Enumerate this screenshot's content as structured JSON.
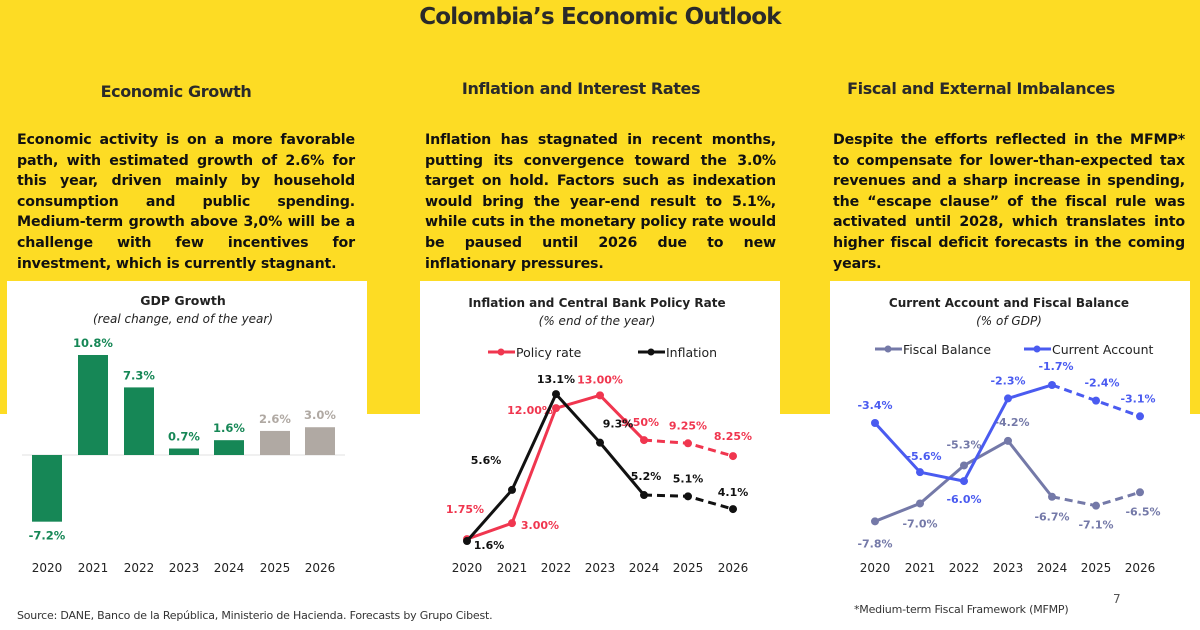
{
  "page": {
    "title": "Colombia’s Economic Outlook",
    "page_number": "7",
    "source": "Source: DANE, Banco de la República, Ministerio de Hacienda. Forecasts by Grupo Cibest.",
    "footnote": "*Medium-term Fiscal Framework (MFMP)",
    "colors": {
      "background_yellow": "#FDDC24",
      "gdp_actual": "#168756",
      "gdp_forecast": "#B0A9A3",
      "policy_rate": "#F0364F",
      "inflation": "#111111",
      "fiscal_balance": "#7479A8",
      "current_account": "#4A5BF0"
    }
  },
  "columns": [
    {
      "heading": "Economic Growth",
      "text": "Economic activity is on a more favorable path, with estimated growth of 2.6% for this year, driven mainly by household consumption and public spending. Medium-term growth above 3,0% will be a challenge with few incentives for investment, which is currently stagnant."
    },
    {
      "heading": "Inflation and Interest Rates",
      "text": "Inflation has stagnated in recent months, putting its convergence toward the 3.0% target on hold. Factors such as indexation would bring the year-end result to 5.1%, while cuts in the monetary policy rate would be paused until 2026 due to new inflationary pressures."
    },
    {
      "heading": "Fiscal and External Imbalances",
      "text": "Despite the efforts reflected in the MFMP* to compensate for lower-than-expected tax revenues and a sharp increase in spending, the “escape clause” of the fiscal rule was activated until 2028, which translates into higher fiscal deficit forecasts in the coming years."
    }
  ],
  "chart_data": [
    {
      "type": "bar",
      "title": "GDP Growth",
      "subtitle": "(real change, end of the year)",
      "categories": [
        "2020",
        "2021",
        "2022",
        "2023",
        "2024",
        "2025",
        "2026"
      ],
      "values": [
        -7.2,
        10.8,
        7.3,
        0.7,
        1.6,
        2.6,
        3.0
      ],
      "labels": [
        "-7.2%",
        "10.8%",
        "7.3%",
        "0.7%",
        "1.6%",
        "2.6%",
        "3.0%"
      ],
      "forecast": [
        false,
        false,
        false,
        false,
        false,
        true,
        true
      ],
      "xlabel": "",
      "ylabel": "",
      "grid": false
    },
    {
      "type": "line",
      "title": "Inflation and Central Bank Policy Rate",
      "subtitle": "(% end of the year)",
      "categories": [
        "2020",
        "2021",
        "2022",
        "2023",
        "2024",
        "2025",
        "2026"
      ],
      "legend_position": "top",
      "series": [
        {
          "name": "Policy rate",
          "values": [
            1.75,
            3.0,
            12.0,
            13.0,
            9.5,
            9.25,
            8.25
          ],
          "labels": [
            "1.75%",
            "3.00%",
            "12.00%",
            "13.00%",
            "9.50%",
            "9.25%",
            "8.25%"
          ],
          "forecast_from_index": 4
        },
        {
          "name": "Inflation",
          "values": [
            1.6,
            5.6,
            13.1,
            9.3,
            5.2,
            5.1,
            4.1
          ],
          "labels": [
            "1.6%",
            "5.6%",
            "13.1%",
            "9.3%",
            "5.2%",
            "5.1%",
            "4.1%"
          ],
          "forecast_from_index": 4
        }
      ],
      "xlabel": "",
      "ylabel": "",
      "grid": false
    },
    {
      "type": "line",
      "title": "Current Account and Fiscal Balance",
      "subtitle": "(% of GDP)",
      "categories": [
        "2020",
        "2021",
        "2022",
        "2023",
        "2024",
        "2025",
        "2026"
      ],
      "legend_position": "top",
      "series": [
        {
          "name": "Fiscal Balance",
          "values": [
            -7.8,
            -7.0,
            -5.3,
            -4.2,
            -6.7,
            -7.1,
            -6.5
          ],
          "labels": [
            "-7.8%",
            "-7.0%",
            "-5.3%",
            "-4.2%",
            "-6.7%",
            "-7.1%",
            "-6.5%"
          ],
          "forecast_from_index": 4
        },
        {
          "name": "Current Account",
          "values": [
            -3.4,
            -5.6,
            -6.0,
            -2.3,
            -1.7,
            -2.4,
            -3.1
          ],
          "labels": [
            "-3.4%",
            "-5.6%",
            "-6.0%",
            "-2.3%",
            "-1.7%",
            "-2.4%",
            "-3.1%"
          ],
          "forecast_from_index": 4
        }
      ],
      "xlabel": "",
      "ylabel": "",
      "grid": false
    }
  ]
}
